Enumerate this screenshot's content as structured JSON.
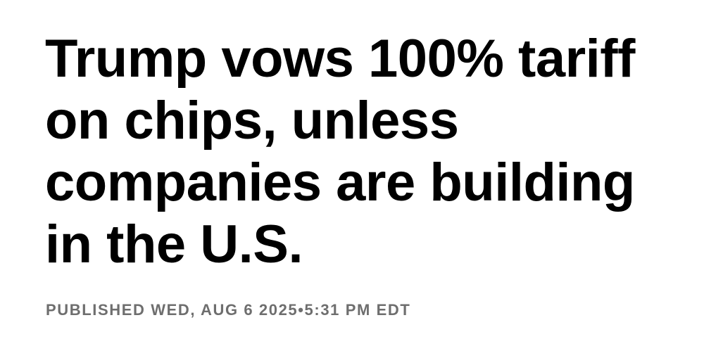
{
  "headline": {
    "lines": [
      "Trump vows 100% tariff",
      "on chips, unless",
      "companies are building",
      "in the U.S."
    ]
  },
  "published": "PUBLISHED WED, AUG 6 2025•5:31 PM EDT"
}
